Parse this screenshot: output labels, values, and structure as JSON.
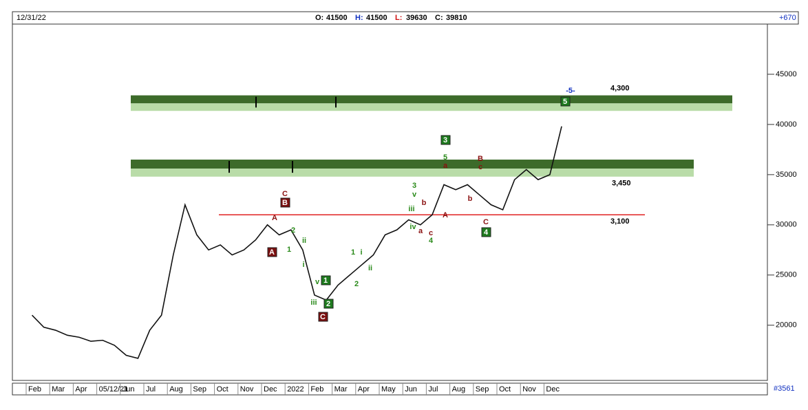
{
  "chart_data": {
    "type": "line",
    "date": "12/31/22",
    "ohlc": [
      {
        "label": "O:",
        "value": 41500,
        "color": "#000"
      },
      {
        "label": "H:",
        "value": 41500,
        "color": "#1030c0"
      },
      {
        "label": "L:",
        "value": 39630,
        "color": "#d01010"
      },
      {
        "label": "C:",
        "value": 39810,
        "color": "#000"
      }
    ],
    "change": "+670",
    "footer": "#3561",
    "categories": [
      "Feb",
      null,
      "Mar",
      null,
      "Apr",
      null,
      "05/12/21",
      null,
      "Jun",
      null,
      "Jul",
      null,
      "Aug",
      null,
      "Sep",
      null,
      "Oct",
      null,
      "Nov",
      null,
      "Dec",
      null,
      "2022",
      null,
      "Feb",
      null,
      "Mar",
      null,
      "Apr",
      null,
      "May",
      null,
      "Jun",
      null,
      "Jul",
      null,
      "Aug",
      null,
      "Sep",
      null,
      "Oct",
      null,
      "Nov",
      null,
      "Dec",
      null
    ],
    "series": [
      {
        "color": "#111111",
        "values": [
          21000,
          19800,
          19500,
          19000,
          18800,
          18400,
          18500,
          18000,
          17000,
          16700,
          19500,
          21000,
          27000,
          32000,
          29000,
          27500,
          28000,
          27000,
          27500,
          28500,
          30000,
          29000,
          29500,
          27500,
          23000,
          22500,
          24000,
          25000,
          26000,
          27000,
          29000,
          29500,
          30500,
          30000,
          31000,
          34000,
          33500,
          34000,
          33000,
          32000,
          31500,
          34500,
          35500,
          34500,
          35000,
          39810
        ]
      }
    ],
    "ylim": [
      14500,
      50000
    ],
    "yticks": [
      20000,
      25000,
      30000,
      35000,
      40000,
      45000
    ],
    "zones": [
      {
        "label": "4,300",
        "top": 42900,
        "mid": 42100,
        "bottom": 41350
      },
      {
        "label": "3,450",
        "top": 36500,
        "mid": 35600,
        "bottom": 34800
      }
    ],
    "levels": [
      {
        "label": "3,100",
        "value": 31000,
        "color": "#e02020"
      }
    ],
    "wave_labels": [
      {
        "text": "-5-",
        "style": "blue"
      },
      {
        "text": "5",
        "style": "green-box"
      },
      {
        "text": "3",
        "style": "green-box"
      },
      {
        "text": "5",
        "style": "green"
      },
      {
        "text": "a",
        "style": "red"
      },
      {
        "text": "B",
        "style": "red"
      },
      {
        "text": "c",
        "style": "red"
      },
      {
        "text": "B",
        "style": "red-box"
      },
      {
        "text": "C",
        "style": "red"
      },
      {
        "text": "A",
        "style": "red"
      },
      {
        "text": "2",
        "style": "green"
      },
      {
        "text": "1",
        "style": "green"
      },
      {
        "text": "ii",
        "style": "green"
      },
      {
        "text": "i",
        "style": "green"
      },
      {
        "text": "A",
        "style": "red-box"
      },
      {
        "text": "1",
        "style": "green-box"
      },
      {
        "text": "v",
        "style": "green"
      },
      {
        "text": "iii",
        "style": "green"
      },
      {
        "text": "2",
        "style": "green-box"
      },
      {
        "text": "C",
        "style": "red-box"
      },
      {
        "text": "1",
        "style": "green"
      },
      {
        "text": "i",
        "style": "green"
      },
      {
        "text": "2",
        "style": "green"
      },
      {
        "text": "ii",
        "style": "green"
      },
      {
        "text": "3",
        "style": "green"
      },
      {
        "text": "v",
        "style": "green"
      },
      {
        "text": "iii",
        "style": "green"
      },
      {
        "text": "iv",
        "style": "green"
      },
      {
        "text": "b",
        "style": "red"
      },
      {
        "text": "a",
        "style": "red"
      },
      {
        "text": "c",
        "style": "red"
      },
      {
        "text": "4",
        "style": "green"
      },
      {
        "text": "A",
        "style": "red"
      },
      {
        "text": "b",
        "style": "red"
      },
      {
        "text": "C",
        "style": "red"
      },
      {
        "text": "4",
        "style": "green-box"
      }
    ]
  }
}
